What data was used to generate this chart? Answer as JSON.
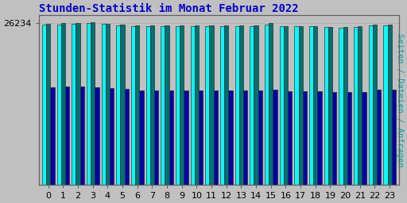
{
  "title": "Stunden-Statistik im Monat Februar 2022",
  "title_color": "#0000cc",
  "ylabel": "Seiten / Dateien / Anfragen",
  "ylabel_color": "#00aaaa",
  "background_color": "#c0c0c0",
  "plot_bg_color": "#c0c0c0",
  "hours": [
    0,
    1,
    2,
    3,
    4,
    5,
    6,
    7,
    8,
    9,
    10,
    11,
    12,
    13,
    14,
    15,
    16,
    17,
    18,
    19,
    20,
    21,
    22,
    23
  ],
  "seiten": [
    26000,
    26050,
    26150,
    26300,
    26100,
    25900,
    25800,
    25780,
    25760,
    25750,
    25760,
    25780,
    25780,
    25760,
    25760,
    26050,
    25700,
    25700,
    25680,
    25600,
    25540,
    25640,
    25900,
    25890
  ],
  "dateien": [
    26100,
    26200,
    26280,
    26400,
    26180,
    26000,
    25860,
    25900,
    25870,
    25850,
    25900,
    25900,
    25900,
    25890,
    25910,
    26200,
    25760,
    25760,
    25730,
    25650,
    25590,
    25700,
    25980,
    25960
  ],
  "anfragen": [
    15800,
    15900,
    16000,
    15880,
    15700,
    15500,
    15350,
    15300,
    15280,
    15250,
    15260,
    15280,
    15280,
    15260,
    15270,
    15480,
    15160,
    15150,
    15120,
    15060,
    15010,
    15100,
    15400,
    15380
  ],
  "ylim_min": 0,
  "ylim_max": 27500,
  "bar_width": 0.28,
  "color_seiten": "#00ffff",
  "color_dateien": "#007070",
  "color_anfragen": "#0000aa",
  "edge_color": "#303030",
  "ytick_label": "26234",
  "ytick_value": 26234,
  "title_fontsize": 10,
  "tick_fontsize": 8,
  "ylabel_fontsize": 7.5
}
